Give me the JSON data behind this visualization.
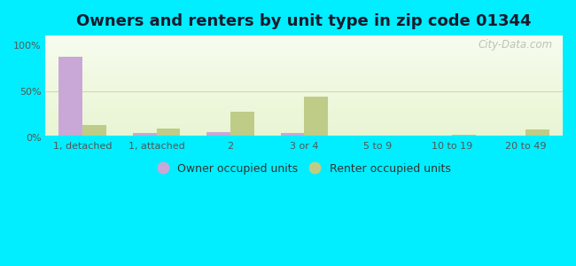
{
  "title": "Owners and renters by unit type in zip code 01344",
  "categories": [
    "1, detached",
    "1, attached",
    "2",
    "3 or 4",
    "5 to 9",
    "10 to 19",
    "20 to 49"
  ],
  "owner_values": [
    87,
    5,
    6,
    5,
    0,
    0,
    0
  ],
  "renter_values": [
    13,
    10,
    28,
    44,
    0,
    3,
    9
  ],
  "owner_color": "#c9a8d8",
  "renter_color": "#bfcc88",
  "background_outer": "#00eeff",
  "bar_width": 0.32,
  "ylim": [
    0,
    110
  ],
  "yticks": [
    0,
    50,
    100
  ],
  "ytick_labels": [
    "0%",
    "50%",
    "100%"
  ],
  "legend_owner": "Owner occupied units",
  "legend_renter": "Renter occupied units",
  "title_fontsize": 13,
  "tick_fontsize": 8,
  "legend_fontsize": 9,
  "watermark": "City-Data.com",
  "plot_bg_color": "#eef5e0"
}
